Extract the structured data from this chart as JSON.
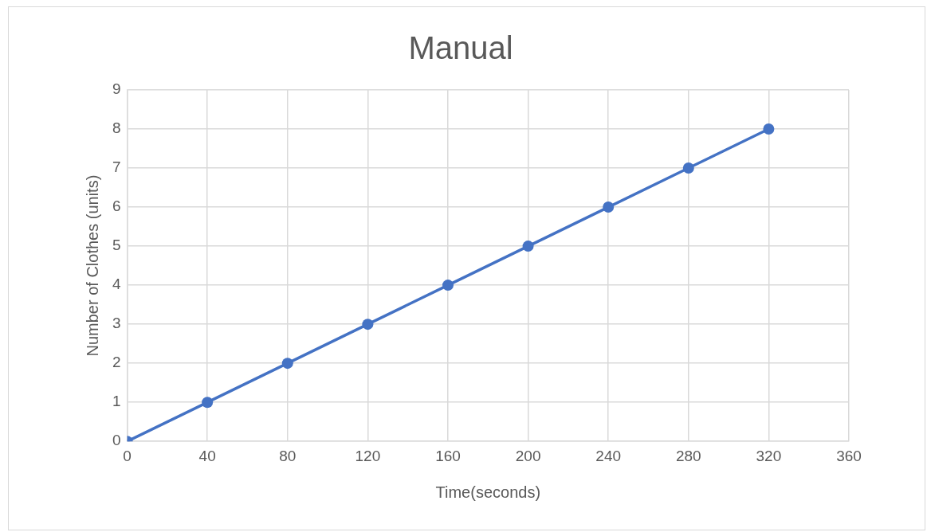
{
  "chart_data": {
    "type": "line",
    "title": "Manual",
    "xlabel": "Time(seconds)",
    "ylabel": "Number of Clothes (units)",
    "x": [
      0,
      40,
      80,
      120,
      160,
      200,
      240,
      280,
      320
    ],
    "series": [
      {
        "color": "#4472c4",
        "values": [
          0,
          1,
          2,
          3,
          4,
          5,
          6,
          7,
          8
        ]
      }
    ],
    "xlim": [
      0,
      360
    ],
    "xticks": [
      0,
      40,
      80,
      120,
      160,
      200,
      240,
      280,
      320,
      360
    ],
    "ylim": [
      0,
      9
    ],
    "yticks": [
      0,
      1,
      2,
      3,
      4,
      5,
      6,
      7,
      8,
      9
    ],
    "grid": true,
    "legend": false,
    "marker": "circle",
    "line_style": "solid"
  }
}
